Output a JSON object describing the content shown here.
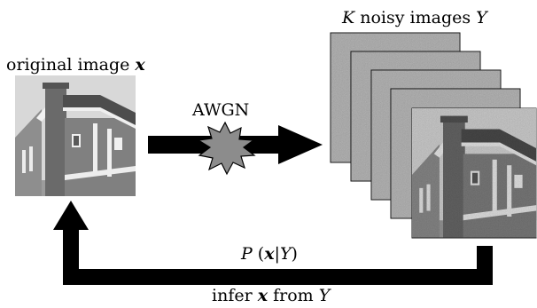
{
  "labels": {
    "original_prefix": "original image ",
    "original_symbol": "x",
    "noisy_count": "K",
    "noisy_text": " noisy images ",
    "noisy_symbol": "Y",
    "noise_label": "AWGN",
    "posterior_p": "P",
    "posterior_x": "x",
    "posterior_bar": "|",
    "posterior_y": "Y",
    "posterior_open": "(",
    "posterior_close": ")",
    "infer_prefix": "infer ",
    "infer_x": "x",
    "infer_mid": " from ",
    "infer_y": "Y"
  },
  "noisy_images_count": 5,
  "colors": {
    "arrow": "#000000",
    "burst_fill": "#8c8c8c",
    "house_sky": "#d6d6d6",
    "house_wall": "#7e7e7e",
    "house_roof": "#5a5a5a",
    "noisy_bg": "#bdbdbd"
  }
}
